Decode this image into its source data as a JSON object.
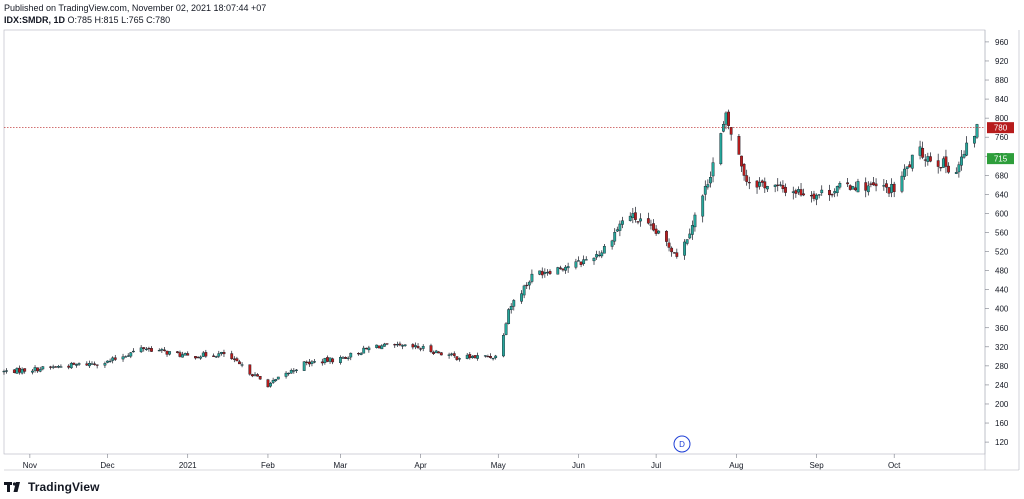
{
  "header": {
    "published": "Published on TradingView.com, November 02, 2021 18:07:44 +07",
    "symbol": "IDX:SMDR, 1D",
    "ohlc": "O:785 H:815 L:765 C:780"
  },
  "price_labels": {
    "last": "780",
    "ma": "715"
  },
  "event_marker": "D",
  "footer": {
    "brand": "TradingView"
  },
  "colors": {
    "up": "#000000",
    "down": "#000000",
    "up_body": "#26a69a",
    "down_body": "#b71c1c",
    "last_price": "#b71c1c",
    "ma_label": "#2e9e3b",
    "event": "#1e3fd6",
    "grid": "#f0f3fa"
  },
  "chart_data": {
    "type": "candlestick",
    "title": "",
    "xlabel": "",
    "ylabel": "",
    "x_ticks": [
      "Nov",
      "Dec",
      "2021",
      "Feb",
      "Mar",
      "Apr",
      "May",
      "Jun",
      "Jul",
      "Aug",
      "Sep",
      "Oct"
    ],
    "y_ticks": [
      120,
      160,
      200,
      240,
      280,
      320,
      360,
      400,
      440,
      480,
      520,
      560,
      600,
      640,
      680,
      720,
      760,
      800,
      840,
      880,
      920,
      960
    ],
    "ylim": [
      95,
      985
    ],
    "period": {
      "start": "2020-10-22",
      "end": "2021-11-02"
    },
    "approx_close_path": [
      {
        "date": "2020-10-22",
        "close": 268
      },
      {
        "date": "2020-11-01",
        "close": 272
      },
      {
        "date": "2020-11-15",
        "close": 280
      },
      {
        "date": "2020-12-01",
        "close": 288
      },
      {
        "date": "2020-12-15",
        "close": 318
      },
      {
        "date": "2021-01-01",
        "close": 300
      },
      {
        "date": "2021-01-15",
        "close": 305
      },
      {
        "date": "2021-02-01",
        "close": 240
      },
      {
        "date": "2021-02-15",
        "close": 285
      },
      {
        "date": "2021-03-01",
        "close": 295
      },
      {
        "date": "2021-03-15",
        "close": 322
      },
      {
        "date": "2021-04-01",
        "close": 318
      },
      {
        "date": "2021-04-15",
        "close": 298
      },
      {
        "date": "2021-05-01",
        "close": 300
      },
      {
        "date": "2021-05-05",
        "close": 400
      },
      {
        "date": "2021-05-15",
        "close": 475
      },
      {
        "date": "2021-06-01",
        "close": 495
      },
      {
        "date": "2021-06-10",
        "close": 520
      },
      {
        "date": "2021-06-20",
        "close": 600
      },
      {
        "date": "2021-07-01",
        "close": 560
      },
      {
        "date": "2021-07-10",
        "close": 510
      },
      {
        "date": "2021-07-20",
        "close": 650
      },
      {
        "date": "2021-07-28",
        "close": 800
      },
      {
        "date": "2021-08-05",
        "close": 670
      },
      {
        "date": "2021-08-20",
        "close": 650
      },
      {
        "date": "2021-09-01",
        "close": 640
      },
      {
        "date": "2021-09-15",
        "close": 660
      },
      {
        "date": "2021-10-01",
        "close": 650
      },
      {
        "date": "2021-10-10",
        "close": 730
      },
      {
        "date": "2021-10-25",
        "close": 690
      },
      {
        "date": "2021-11-02",
        "close": 780
      }
    ],
    "last_price": 780,
    "ma_value": 715,
    "grid": true,
    "legend": "none"
  }
}
